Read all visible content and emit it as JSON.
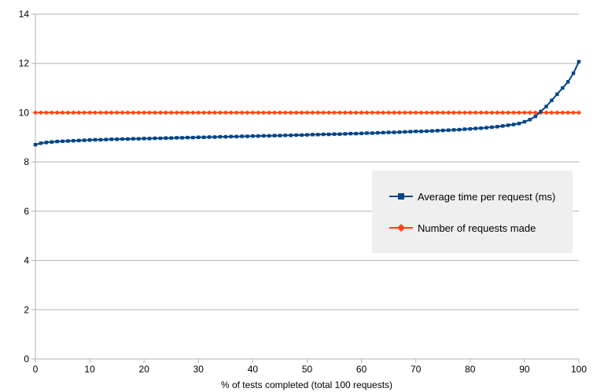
{
  "chart_data": {
    "type": "line",
    "xlabel": "% of tests completed (total 100 requests)",
    "ylabel": "",
    "xlim": [
      0,
      100
    ],
    "ylim": [
      0,
      14
    ],
    "x_ticks": [
      0,
      10,
      20,
      30,
      40,
      50,
      60,
      70,
      80,
      90,
      100
    ],
    "y_ticks": [
      0,
      2,
      4,
      6,
      8,
      10,
      12,
      14
    ],
    "grid": "horizontal",
    "legend_position": "right",
    "x": [
      0,
      1,
      2,
      3,
      4,
      5,
      6,
      7,
      8,
      9,
      10,
      11,
      12,
      13,
      14,
      15,
      16,
      17,
      18,
      19,
      20,
      21,
      22,
      23,
      24,
      25,
      26,
      27,
      28,
      29,
      30,
      31,
      32,
      33,
      34,
      35,
      36,
      37,
      38,
      39,
      40,
      41,
      42,
      43,
      44,
      45,
      46,
      47,
      48,
      49,
      50,
      51,
      52,
      53,
      54,
      55,
      56,
      57,
      58,
      59,
      60,
      61,
      62,
      63,
      64,
      65,
      66,
      67,
      68,
      69,
      70,
      71,
      72,
      73,
      74,
      75,
      76,
      77,
      78,
      79,
      80,
      81,
      82,
      83,
      84,
      85,
      86,
      87,
      88,
      89,
      90,
      91,
      92,
      93,
      94,
      95,
      96,
      97,
      98,
      99,
      100
    ],
    "series": [
      {
        "name": "Average time per request (ms)",
        "color": "#004586",
        "marker": "square",
        "values": [
          8.7,
          8.76,
          8.79,
          8.81,
          8.83,
          8.84,
          8.85,
          8.86,
          8.87,
          8.88,
          8.89,
          8.9,
          8.9,
          8.91,
          8.92,
          8.92,
          8.93,
          8.93,
          8.94,
          8.94,
          8.95,
          8.95,
          8.96,
          8.96,
          8.97,
          8.97,
          8.98,
          8.98,
          8.99,
          8.99,
          9.0,
          9.0,
          9.01,
          9.01,
          9.02,
          9.02,
          9.03,
          9.03,
          9.04,
          9.04,
          9.05,
          9.05,
          9.06,
          9.06,
          9.07,
          9.07,
          9.08,
          9.08,
          9.09,
          9.09,
          9.1,
          9.11,
          9.11,
          9.12,
          9.12,
          9.13,
          9.13,
          9.14,
          9.15,
          9.15,
          9.16,
          9.17,
          9.17,
          9.18,
          9.19,
          9.2,
          9.2,
          9.21,
          9.22,
          9.23,
          9.24,
          9.24,
          9.25,
          9.26,
          9.27,
          9.28,
          9.29,
          9.3,
          9.31,
          9.33,
          9.34,
          9.36,
          9.37,
          9.39,
          9.41,
          9.43,
          9.46,
          9.49,
          9.52,
          9.56,
          9.63,
          9.72,
          9.85,
          10.05,
          10.25,
          10.5,
          10.75,
          11.0,
          11.25,
          11.6,
          12.07
        ]
      },
      {
        "name": "Number of requests made",
        "color": "#ff420e",
        "marker": "diamond",
        "values": [
          10,
          10,
          10,
          10,
          10,
          10,
          10,
          10,
          10,
          10,
          10,
          10,
          10,
          10,
          10,
          10,
          10,
          10,
          10,
          10,
          10,
          10,
          10,
          10,
          10,
          10,
          10,
          10,
          10,
          10,
          10,
          10,
          10,
          10,
          10,
          10,
          10,
          10,
          10,
          10,
          10,
          10,
          10,
          10,
          10,
          10,
          10,
          10,
          10,
          10,
          10,
          10,
          10,
          10,
          10,
          10,
          10,
          10,
          10,
          10,
          10,
          10,
          10,
          10,
          10,
          10,
          10,
          10,
          10,
          10,
          10,
          10,
          10,
          10,
          10,
          10,
          10,
          10,
          10,
          10,
          10,
          10,
          10,
          10,
          10,
          10,
          10,
          10,
          10,
          10,
          10,
          10,
          10,
          10,
          10,
          10,
          10,
          10,
          10,
          10,
          10
        ]
      }
    ]
  }
}
